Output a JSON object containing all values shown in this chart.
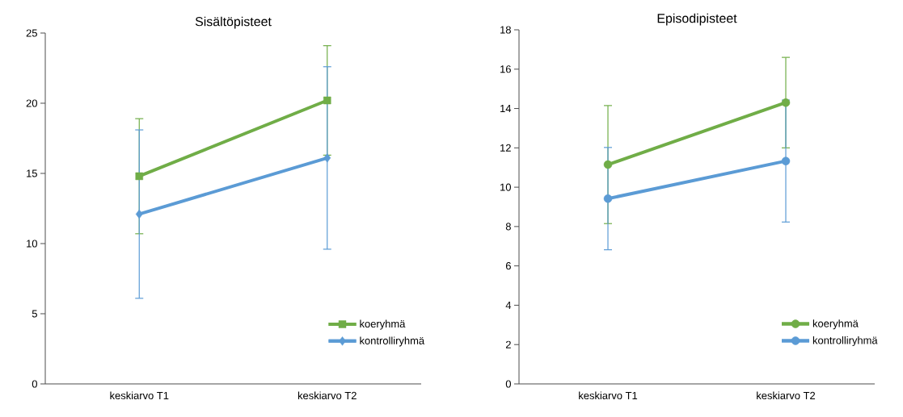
{
  "chart_data": [
    {
      "type": "line",
      "title": "Sisältöpisteet",
      "categories": [
        "keskiarvo T1",
        "keskiarvo T2"
      ],
      "ylim": [
        0,
        25
      ],
      "yticks": [
        0,
        5,
        10,
        15,
        20,
        25
      ],
      "grid": false,
      "legend": "bottom right",
      "series": [
        {
          "name": "koeryhmä",
          "color": "#70ad47",
          "marker": "square",
          "values": [
            14.8,
            20.2
          ],
          "errors": [
            4.1,
            3.9
          ]
        },
        {
          "name": "kontrolliryhmä",
          "color": "#5b9bd5",
          "marker": "diamond",
          "values": [
            12.1,
            16.1
          ],
          "errors": [
            6.0,
            6.5
          ]
        }
      ]
    },
    {
      "type": "line",
      "title": "Episodipisteet",
      "categories": [
        "keskiarvo T1",
        "keskiarvo T2"
      ],
      "ylim": [
        0,
        18
      ],
      "yticks": [
        0,
        2,
        4,
        6,
        8,
        10,
        12,
        14,
        16,
        18
      ],
      "grid": false,
      "legend": "bottom right",
      "series": [
        {
          "name": "koeryhmä",
          "color": "#70ad47",
          "marker": "circle",
          "values": [
            11.15,
            14.3
          ],
          "errors": [
            3.0,
            2.3
          ]
        },
        {
          "name": "kontrolliryhmä",
          "color": "#5b9bd5",
          "marker": "circle",
          "values": [
            9.42,
            11.33
          ],
          "errors": [
            2.6,
            3.1
          ]
        }
      ]
    }
  ]
}
